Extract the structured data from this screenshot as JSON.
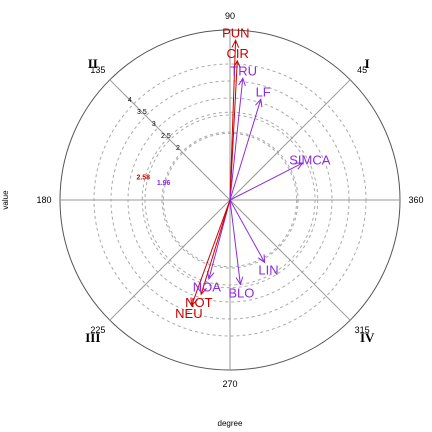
{
  "chart_data": {
    "type": "polar-vector",
    "xlabel": "degree",
    "ylabel": "value",
    "angle_labels": [
      {
        "deg": 0,
        "text": "360"
      },
      {
        "deg": 45,
        "text": "45"
      },
      {
        "deg": 90,
        "text": "90"
      },
      {
        "deg": 135,
        "text": "135"
      },
      {
        "deg": 180,
        "text": "180"
      },
      {
        "deg": 225,
        "text": "225"
      },
      {
        "deg": 270,
        "text": "270"
      },
      {
        "deg": 315,
        "text": "315"
      }
    ],
    "quadrants": [
      {
        "deg": 45,
        "text": "I"
      },
      {
        "deg": 135,
        "text": "II"
      },
      {
        "deg": 225,
        "text": "III"
      },
      {
        "deg": 315,
        "text": "IV"
      }
    ],
    "radial_ticks": [
      {
        "value": 2,
        "text": "2"
      },
      {
        "value": 2.5,
        "text": "2.5"
      },
      {
        "value": 3,
        "text": "3"
      },
      {
        "value": 3.5,
        "text": "3.5"
      },
      {
        "value": 4,
        "text": "4"
      }
    ],
    "radial_max": 5,
    "reference_circles": [
      {
        "value": 2.58,
        "text": "2.58",
        "color": "#cc0000"
      },
      {
        "value": 1.96,
        "text": "1.96",
        "color": "#8b2be2"
      }
    ],
    "series": [
      {
        "label": "PUN",
        "angle": 88,
        "length": 4.7,
        "color": "#cc0000"
      },
      {
        "label": "CIR",
        "angle": 87,
        "length": 4.1,
        "color": "#cc0000"
      },
      {
        "label": "TRU",
        "angle": 84,
        "length": 3.6,
        "color": "#8b2be2"
      },
      {
        "label": "LF",
        "angle": 73,
        "length": 3.1,
        "color": "#8b2be2"
      },
      {
        "label": "SIMCA",
        "angle": 27,
        "length": 2.4,
        "color": "#8b2be2"
      },
      {
        "label": "LIN",
        "angle": 299,
        "length": 2.1,
        "color": "#8b2be2"
      },
      {
        "label": "BLO",
        "angle": 277,
        "length": 2.5,
        "color": "#8b2be2"
      },
      {
        "label": "NOA",
        "angle": 255,
        "length": 2.4,
        "color": "#8b2be2"
      },
      {
        "label": "NOT",
        "angle": 253,
        "length": 2.9,
        "color": "#cc0000"
      },
      {
        "label": "NEU",
        "angle": 250,
        "length": 3.3,
        "color": "#cc0000"
      }
    ]
  }
}
